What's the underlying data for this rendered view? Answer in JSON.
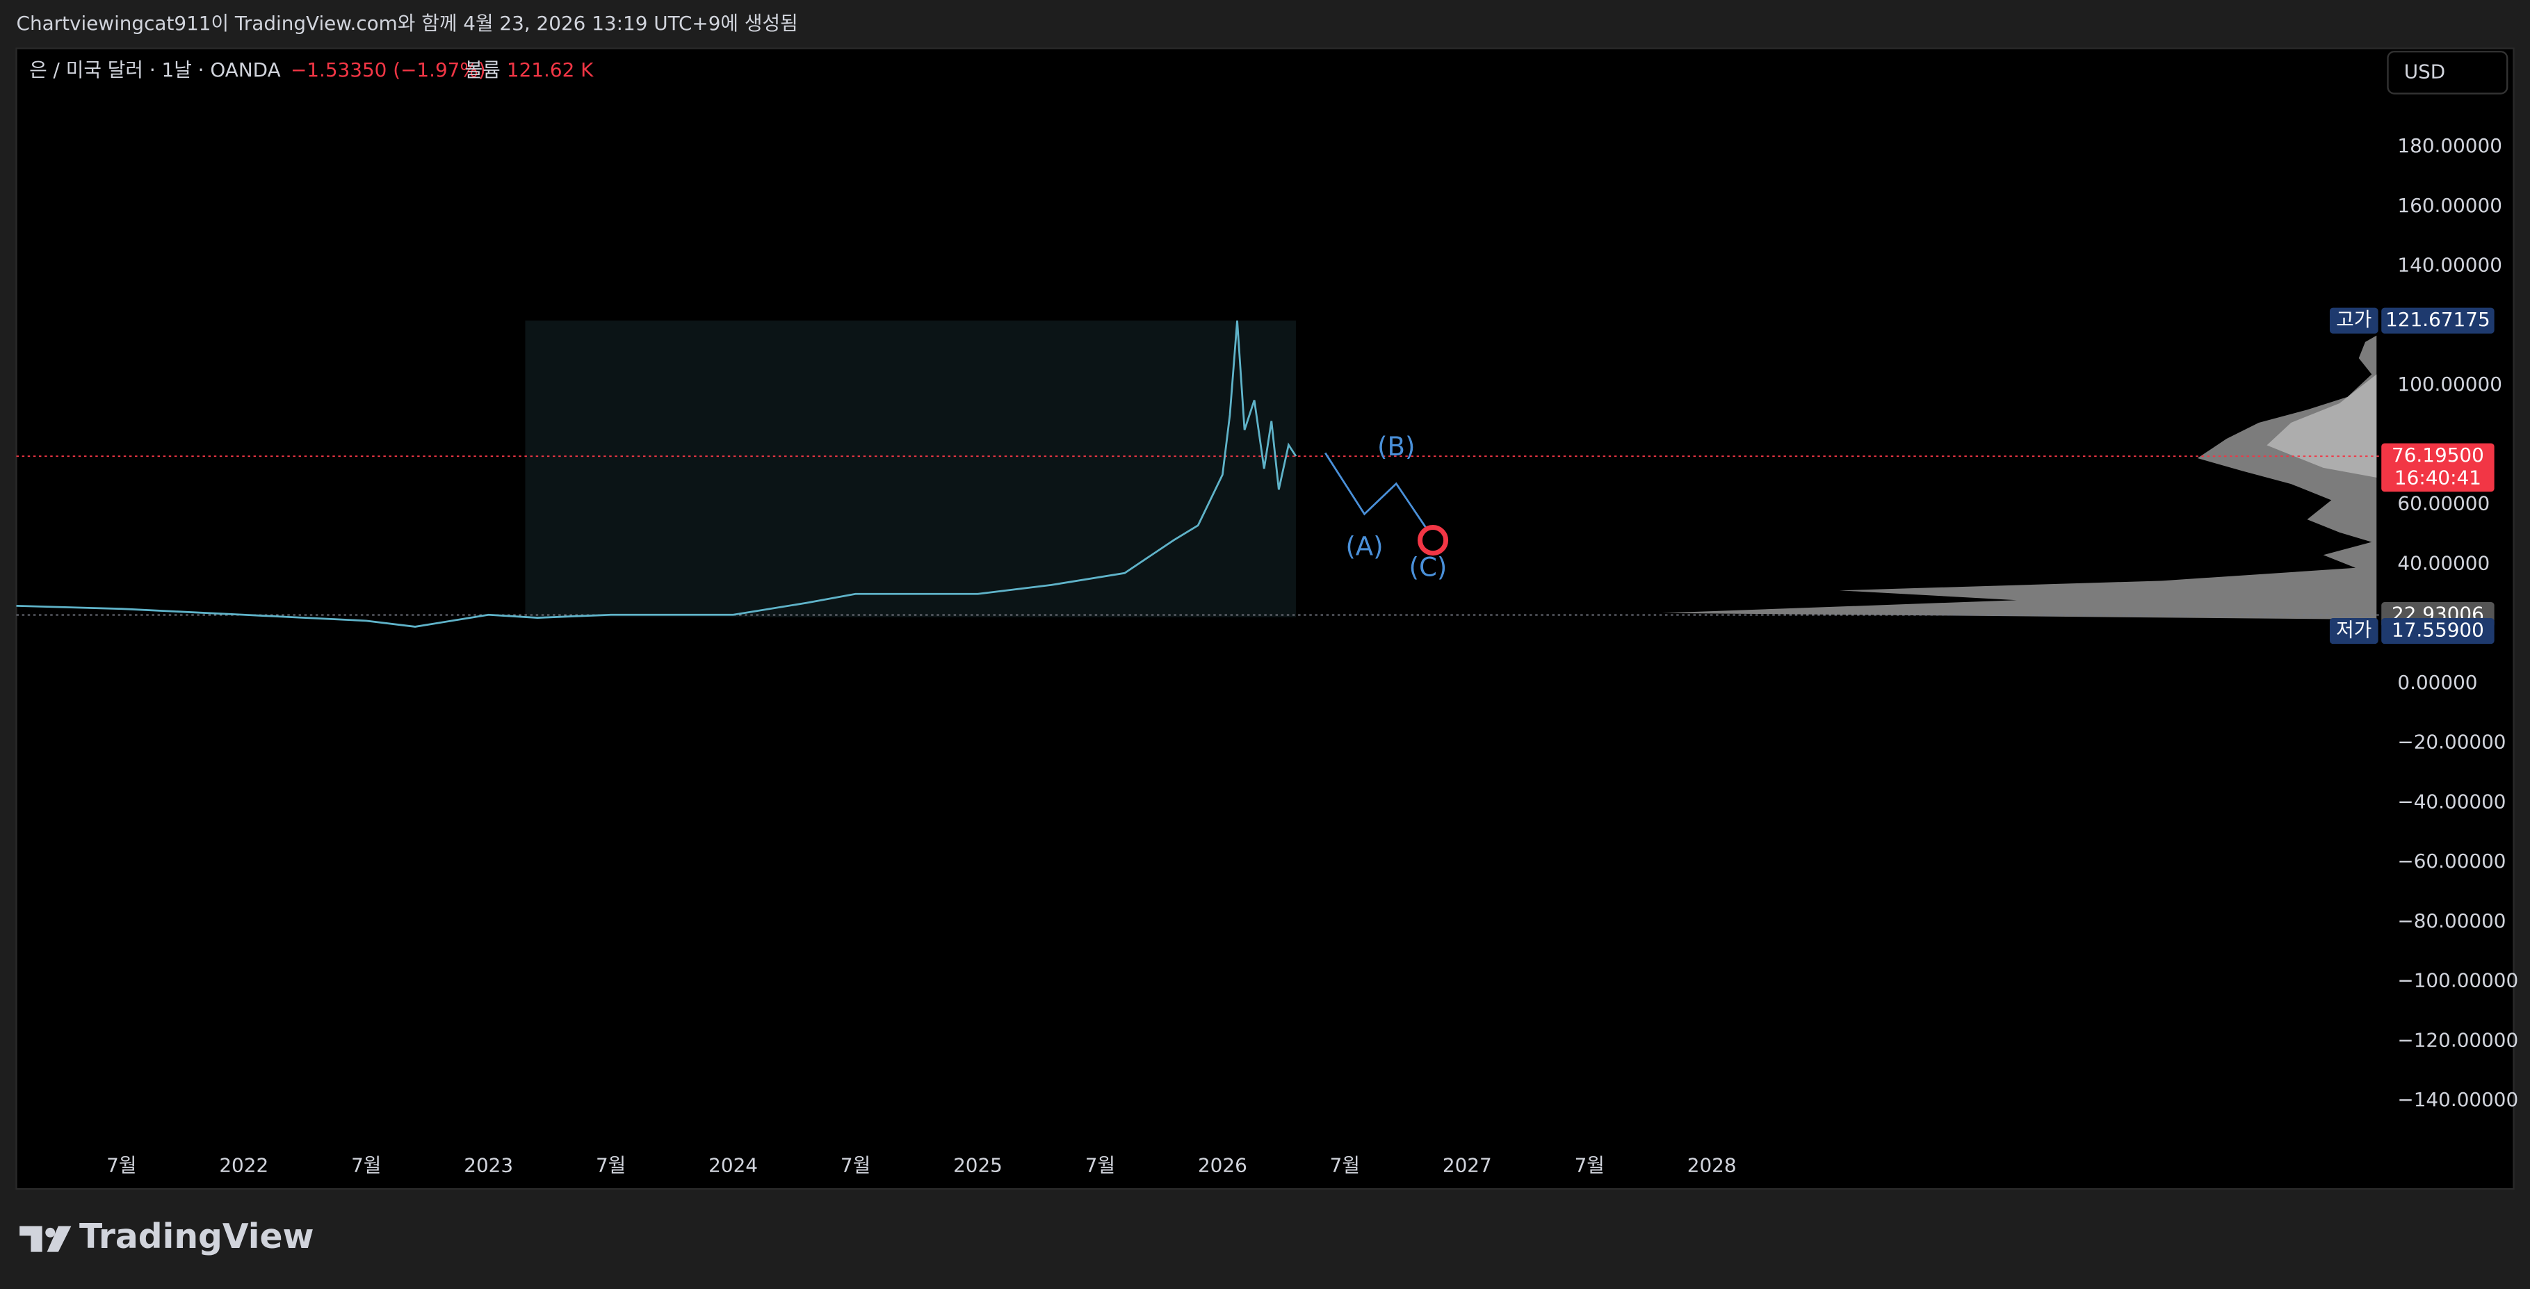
{
  "header": {
    "caption": "Chartviewingcat911이 TradingView.com와 함께 4월 23, 2026 13:19 UTC+9에 생성됨"
  },
  "legend": {
    "symbol": "은 / 미국 달러 · 1날 · OANDA",
    "change": "−1.53350 (−1.97%)",
    "volume_label": "볼륨",
    "volume": "121.62 K"
  },
  "currency": "USD",
  "logo": "TradingView",
  "chart_data": {
    "type": "line",
    "xlim": [
      2021.07,
      2030.73
    ],
    "ylim": [
      -155,
      213
    ],
    "xticks": [
      {
        "value": 2021.5,
        "label": "7월"
      },
      2022,
      {
        "value": 2022.5,
        "label": "7월"
      },
      2023,
      {
        "value": 2023.5,
        "label": "7월"
      },
      2024,
      {
        "value": 2024.5,
        "label": "7월"
      },
      2025,
      {
        "value": 2025.5,
        "label": "7월"
      },
      2026,
      {
        "value": 2026.5,
        "label": "7월"
      },
      2027,
      {
        "value": 2027.5,
        "label": "7월"
      },
      2028
    ],
    "yticks": [
      {
        "value": 180,
        "label": "180.00000"
      },
      {
        "value": 160,
        "label": "160.00000"
      },
      {
        "value": 140,
        "label": "140.00000"
      },
      {
        "value": 100,
        "label": "100.00000"
      },
      {
        "value": 60,
        "label": "60.00000"
      },
      {
        "value": 40,
        "label": "40.00000"
      },
      {
        "value": 0,
        "label": "0.00000"
      },
      {
        "value": -20,
        "label": "−20.00000"
      },
      {
        "value": -40,
        "label": "−40.00000"
      },
      {
        "value": -60,
        "label": "−60.00000"
      },
      {
        "value": -80,
        "label": "−80.00000"
      },
      {
        "value": -100,
        "label": "−100.00000"
      },
      {
        "value": -120,
        "label": "−120.00000"
      },
      {
        "value": -140,
        "label": "−140.00000"
      }
    ],
    "series": [
      {
        "color": "#5fb3c9",
        "x": [
          2021.07,
          2021.5,
          2022.0,
          2022.5,
          2022.7,
          2023.0,
          2023.2,
          2023.5,
          2024.0,
          2024.3,
          2024.5,
          2025.0,
          2025.3,
          2025.6,
          2025.8,
          2025.9,
          2026.0,
          2026.03,
          2026.06,
          2026.09,
          2026.13,
          2026.17,
          2026.2,
          2026.23,
          2026.27,
          2026.3
        ],
        "values": [
          26,
          25,
          23,
          21,
          19,
          23,
          22,
          23,
          23,
          27,
          30,
          30,
          33,
          37,
          48,
          53,
          70,
          90,
          121.7,
          85,
          95,
          72,
          88,
          65,
          80,
          76.2
        ]
      },
      {
        "color": "#4a90d9",
        "x": [
          2026.42,
          2026.58,
          2026.71,
          2026.83
        ],
        "values": [
          77.3,
          56.8,
          67,
          52.4
        ]
      }
    ],
    "range_box": {
      "x": [
        2023.15,
        2026.3
      ],
      "y": [
        22.2,
        121.7
      ]
    },
    "annotations": [
      {
        "text": "(A)",
        "x": 2026.58,
        "y": 45.4
      },
      {
        "text": "(B)",
        "x": 2026.71,
        "y": 78.9
      },
      {
        "text": "(C)",
        "x": 2026.84,
        "y": 38.4
      }
    ],
    "target": {
      "x": 2026.86,
      "y": 48
    },
    "price_lines": [
      {
        "value": 76.195,
        "color": "#f23645"
      },
      {
        "value": 22.93006,
        "color": "#787b86"
      }
    ],
    "markers": [
      {
        "tag": "고가",
        "value": 121.67175,
        "color": "#1e3a6e"
      },
      {
        "value": 76.195,
        "label": "76.19500",
        "countdown": "16:40:41",
        "color": "#f23645"
      },
      {
        "value": 22.93006,
        "color": "#555555"
      },
      {
        "tag": "저가",
        "value": 17.559,
        "label": "17.55900",
        "color": "#1e3a6e"
      }
    ]
  }
}
